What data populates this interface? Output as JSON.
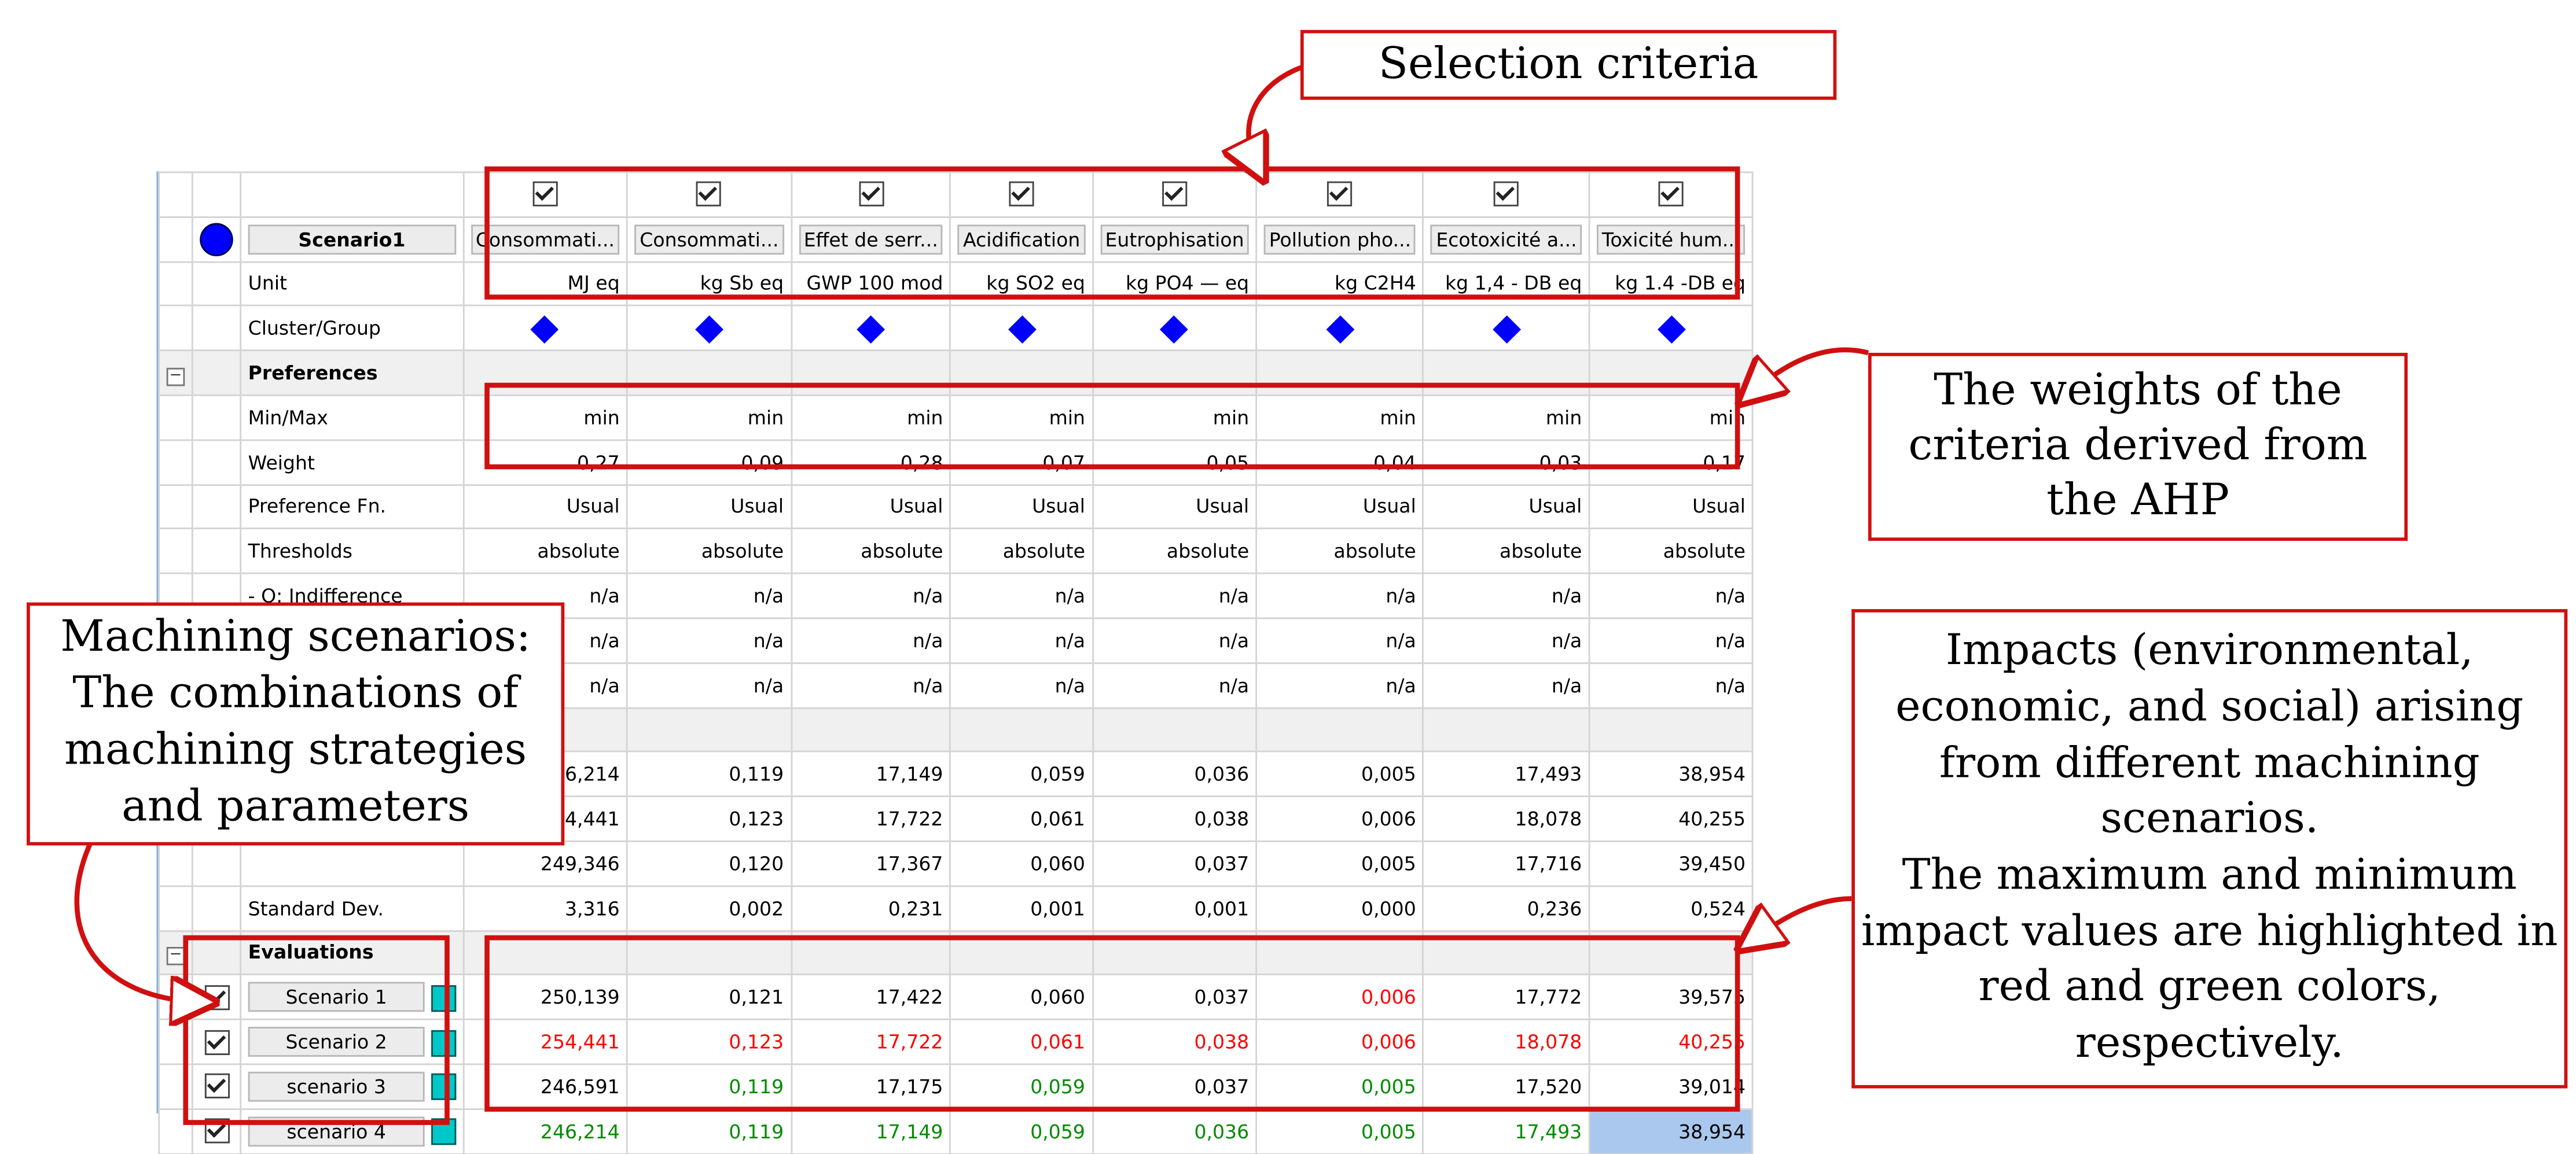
{
  "annotations": {
    "selection_criteria": "Selection criteria",
    "weights": "The weights of the\ncriteria derived from\nthe AHP",
    "scenarios": "Machining scenarios:\nThe combinations of\nmachining strategies\nand parameters",
    "impacts": "Impacts (environmental,\neconomic, and social) arising\nfrom different machining\nscenarios.\nThe maximum and minimum\nimpact values are highlighted in\nred and green colors,\nrespectively."
  },
  "grid": {
    "scenario_title": "Scenario1",
    "columns": [
      "Consommati...",
      "Consommati...",
      "Effet de serr...",
      "Acidification",
      "Eutrophisation",
      "Pollution pho...",
      "Ecotoxicité a...",
      "Toxicité hum..."
    ],
    "units": [
      "MJ eq",
      "kg Sb eq",
      "GWP 100 mod",
      "kg SO2 eq",
      "kg PO4 — eq",
      "kg C2H4",
      "kg 1,4 - DB eq",
      "kg 1.4 -DB eq"
    ],
    "labels": {
      "unit": "Unit",
      "cluster": "Cluster/Group",
      "preferences": "Preferences",
      "minmax": "Min/Max",
      "weight": "Weight",
      "pref_fn": "Preference Fn.",
      "thresholds": "Thresholds",
      "q_indiff": "- Q: Indifference",
      "std_dev": "Standard Dev.",
      "evaluations": "Evaluations"
    },
    "minmax": [
      "min",
      "min",
      "min",
      "min",
      "min",
      "min",
      "min",
      "min"
    ],
    "weights": [
      "0,27",
      "0,09",
      "0,28",
      "0,07",
      "0,05",
      "0,04",
      "0,03",
      "0,17"
    ],
    "pref_fn": [
      "Usual",
      "Usual",
      "Usual",
      "Usual",
      "Usual",
      "Usual",
      "Usual",
      "Usual"
    ],
    "thresholds": [
      "absolute",
      "absolute",
      "absolute",
      "absolute",
      "absolute",
      "absolute",
      "absolute",
      "absolute"
    ],
    "q_indiff": [
      "n/a",
      "n/a",
      "n/a",
      "n/a",
      "n/a",
      "n/a",
      "n/a",
      "n/a"
    ],
    "na_row1": [
      "n/a",
      "n/a",
      "n/a",
      "n/a",
      "n/a",
      "n/a",
      "n/a",
      "n/a"
    ],
    "na_row2": [
      "n/a",
      "n/a",
      "n/a",
      "n/a",
      "n/a",
      "n/a",
      "n/a",
      "n/a"
    ],
    "stats_row1": [
      "246,214",
      "0,119",
      "17,149",
      "0,059",
      "0,036",
      "0,005",
      "17,493",
      "38,954"
    ],
    "stats_row2": [
      "254,441",
      "0,123",
      "17,722",
      "0,061",
      "0,038",
      "0,006",
      "18,078",
      "40,255"
    ],
    "stats_row3": [
      "249,346",
      "0,120",
      "17,367",
      "0,060",
      "0,037",
      "0,005",
      "17,716",
      "39,450"
    ],
    "std_dev": [
      "3,316",
      "0,002",
      "0,231",
      "0,001",
      "0,001",
      "0,000",
      "0,236",
      "0,524"
    ],
    "scenarios": [
      {
        "name": "Scenario 1",
        "values": [
          "250,139",
          "0,121",
          "17,422",
          "0,060",
          "0,037",
          "0,006",
          "17,772",
          "39,575"
        ]
      },
      {
        "name": "Scenario 2",
        "values": [
          "254,441",
          "0,123",
          "17,722",
          "0,061",
          "0,038",
          "0,006",
          "18,078",
          "40,255"
        ]
      },
      {
        "name": "scenario 3",
        "values": [
          "246,591",
          "0,119",
          "17,175",
          "0,059",
          "0,037",
          "0,005",
          "17,520",
          "39,014"
        ]
      },
      {
        "name": "scenario 4",
        "values": [
          "246,214",
          "0,119",
          "17,149",
          "0,059",
          "0,036",
          "0,005",
          "17,493",
          "38,954"
        ]
      }
    ]
  },
  "colors": {
    "max_highlight": "#ff0000",
    "min_highlight": "#008a00",
    "frame": "#d01010",
    "indicator_blue": "#0000ff",
    "cyan_marker": "#00c8c8",
    "selected_cell": "#aac8ee"
  },
  "icons": {
    "checkbox": "checked-checkbox-icon",
    "cluster": "blue-diamond-icon",
    "scenario_indicator": "blue-circle-icon",
    "expander": "collapse-minus-icon"
  }
}
